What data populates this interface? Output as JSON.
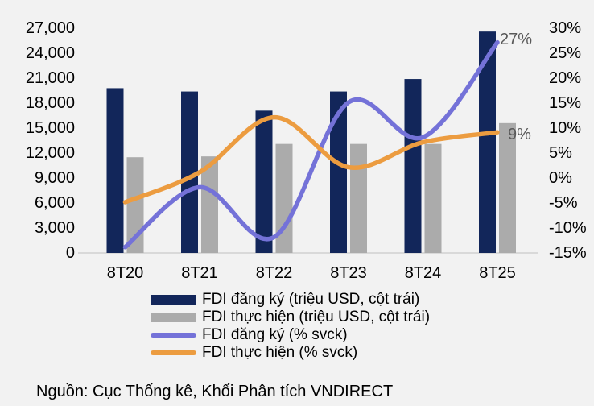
{
  "colors": {
    "background": "#F2F2F2",
    "axis_line": "#D9D9D9",
    "text": "#000000",
    "data_label": "#595959"
  },
  "chart_data": {
    "type": "bar+line",
    "title": "",
    "categories": [
      "8T20",
      "8T21",
      "8T22",
      "8T23",
      "8T24",
      "8T25"
    ],
    "series": [
      {
        "name": "FDI đăng ký (triệu USD, cột trái)",
        "type": "bar",
        "axis": "left",
        "color": "#12265A",
        "values": [
          19700,
          19300,
          17000,
          19300,
          20800,
          26500
        ]
      },
      {
        "name": "FDI thực hiện (triệu USD, cột trái)",
        "type": "bar",
        "axis": "left",
        "color": "#ABABAB",
        "values": [
          11400,
          11500,
          13000,
          13000,
          13000,
          15500
        ]
      },
      {
        "name": "FDI đăng ký (% svck)",
        "type": "line",
        "axis": "right",
        "color": "#7472D8",
        "values": [
          -14,
          -2,
          -12,
          15,
          8,
          27
        ]
      },
      {
        "name": "FDI thực hiện (% svck)",
        "type": "line",
        "axis": "right",
        "color": "#EC9C40",
        "values": [
          -5,
          1,
          12,
          2,
          7,
          9
        ]
      }
    ],
    "left_axis": {
      "min": 0,
      "max": 27000,
      "step": 3000,
      "tick_labels": [
        "0",
        "3,000",
        "6,000",
        "9,000",
        "12,000",
        "15,000",
        "18,000",
        "21,000",
        "24,000",
        "27,000"
      ]
    },
    "right_axis": {
      "min": -15,
      "max": 30,
      "step": 5,
      "tick_labels": [
        "-15%",
        "-10%",
        "-5%",
        "0%",
        "5%",
        "10%",
        "15%",
        "20%",
        "25%",
        "30%"
      ]
    },
    "point_labels": [
      {
        "text": "27%",
        "series": 2,
        "x": 621,
        "y": 55
      },
      {
        "text": "9%",
        "series": 3,
        "x": 631,
        "y": 173
      }
    ],
    "grid": false,
    "legend_position": "bottom"
  },
  "source_note": "Nguồn: Cục Thống kê, Khối Phân tích VNDIRECT"
}
